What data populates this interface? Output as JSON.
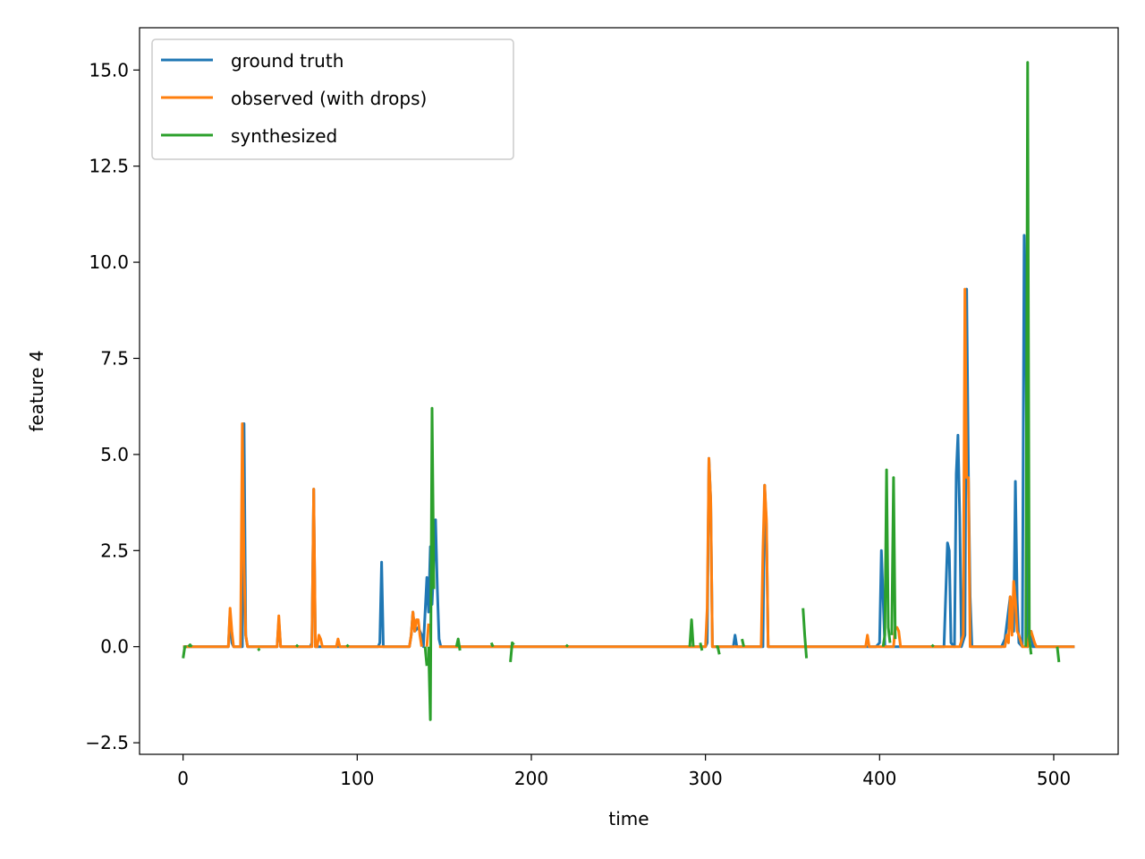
{
  "chart_data": {
    "type": "line",
    "xlabel": "time",
    "ylabel": "feature 4",
    "xlim": [
      -25,
      537
    ],
    "ylim": [
      -2.8,
      16.1
    ],
    "xticks": [
      0,
      100,
      200,
      300,
      400,
      500
    ],
    "yticks": [
      -2.5,
      0.0,
      2.5,
      5.0,
      7.5,
      10.0,
      12.5,
      15.0
    ],
    "xtick_labels": [
      "0",
      "100",
      "200",
      "300",
      "400",
      "500"
    ],
    "ytick_labels": [
      "−2.5",
      "0.0",
      "2.5",
      "5.0",
      "7.5",
      "10.0",
      "12.5",
      "15.0"
    ],
    "legend": {
      "placement": "top-left"
    },
    "grid": false,
    "series": [
      {
        "name": "ground truth",
        "color": "#1f77b4",
        "segments": [
          [
            [
              0,
              0
            ],
            [
              26,
              0
            ],
            [
              27,
              0.9
            ],
            [
              28,
              0.1
            ],
            [
              29,
              0
            ],
            [
              34,
              0
            ],
            [
              35,
              5.8
            ],
            [
              36,
              0.3
            ],
            [
              37,
              0
            ],
            [
              54,
              0
            ],
            [
              55,
              0.7
            ],
            [
              56,
              0
            ],
            [
              73,
              0
            ],
            [
              74,
              0.1
            ],
            [
              75,
              4.1
            ],
            [
              76,
              0
            ],
            [
              112,
              0
            ],
            [
              113,
              0.1
            ],
            [
              114,
              2.2
            ],
            [
              115,
              0
            ],
            [
              130,
              0
            ],
            [
              131,
              0.3
            ],
            [
              132,
              0.9
            ],
            [
              133,
              0.4
            ],
            [
              135,
              0.5
            ],
            [
              137,
              0.3
            ],
            [
              138,
              0
            ],
            [
              140,
              1.8
            ],
            [
              141,
              0.9
            ],
            [
              142,
              2.6
            ],
            [
              143,
              1.1
            ],
            [
              144,
              2.2
            ],
            [
              145,
              3.3
            ],
            [
              146,
              1.5
            ],
            [
              147,
              0.2
            ],
            [
              148,
              0
            ],
            [
              280,
              0
            ],
            [
              300,
              0
            ],
            [
              301,
              0.1
            ],
            [
              302,
              4.9
            ],
            [
              303,
              3.8
            ],
            [
              304,
              0
            ],
            [
              316,
              0
            ],
            [
              317,
              0.3
            ],
            [
              318,
              0
            ],
            [
              333,
              0
            ],
            [
              334,
              4.2
            ],
            [
              335,
              3.1
            ],
            [
              336,
              0
            ],
            [
              398,
              0
            ],
            [
              400,
              0.1
            ],
            [
              401,
              2.5
            ],
            [
              402,
              1.3
            ],
            [
              403,
              0
            ],
            [
              437,
              0
            ],
            [
              439,
              2.7
            ],
            [
              440,
              2.5
            ],
            [
              441,
              0.1
            ],
            [
              443,
              0
            ],
            [
              444,
              4.5
            ],
            [
              445,
              5.5
            ],
            [
              446,
              3.4
            ],
            [
              447,
              0
            ],
            [
              449,
              0.3
            ],
            [
              450,
              9.3
            ],
            [
              451,
              4.5
            ],
            [
              452,
              1.3
            ],
            [
              453,
              0
            ],
            [
              470,
              0
            ],
            [
              472,
              0.2
            ],
            [
              475,
              1.3
            ],
            [
              477,
              0.4
            ],
            [
              478,
              4.3
            ],
            [
              479,
              1.2
            ],
            [
              480,
              0.1
            ],
            [
              482,
              0
            ],
            [
              483,
              10.7
            ],
            [
              484,
              9.0
            ],
            [
              485,
              0
            ],
            [
              487,
              0.4
            ],
            [
              488,
              0
            ],
            [
              512,
              0
            ]
          ]
        ]
      },
      {
        "name": "observed (with drops)",
        "color": "#ff7f0e",
        "segments": [
          [
            [
              0,
              0
            ],
            [
              26,
              0
            ],
            [
              27,
              1.0
            ],
            [
              28,
              0.4
            ],
            [
              29,
              0
            ],
            [
              33,
              0
            ],
            [
              34,
              5.8
            ],
            [
              35,
              2.1
            ],
            [
              36,
              0.3
            ],
            [
              37,
              0
            ],
            [
              54,
              0
            ],
            [
              55,
              0.8
            ],
            [
              56,
              0
            ],
            [
              74,
              0
            ],
            [
              75,
              4.1
            ],
            [
              76,
              0
            ],
            [
              77,
              0
            ],
            [
              78,
              0.3
            ],
            [
              79,
              0.2
            ],
            [
              80,
              0
            ],
            [
              88,
              0
            ],
            [
              89,
              0.2
            ],
            [
              90,
              0
            ],
            [
              130,
              0
            ],
            [
              131,
              0.3
            ],
            [
              132,
              0.9
            ],
            [
              133,
              0.4
            ],
            [
              134,
              0.7
            ],
            [
              135,
              0.7
            ],
            [
              136,
              0.3
            ],
            [
              137,
              0
            ]
          ],
          [
            [
              140,
              0
            ],
            [
              141,
              0.6
            ]
          ],
          [
            [
              147,
              0
            ],
            [
              280,
              0
            ],
            [
              300,
              0
            ],
            [
              301,
              1.0
            ],
            [
              302,
              4.9
            ],
            [
              303,
              3.8
            ],
            [
              304,
              0
            ],
            [
              332,
              0
            ],
            [
              333,
              2.5
            ],
            [
              334,
              4.2
            ],
            [
              335,
              3.3
            ],
            [
              336,
              0
            ],
            [
              392,
              0
            ],
            [
              393,
              0.3
            ],
            [
              394,
              0
            ],
            [
              408,
              0
            ],
            [
              409,
              0.5
            ],
            [
              410,
              0.5
            ],
            [
              411,
              0.4
            ],
            [
              412,
              0
            ],
            [
              446,
              0
            ],
            [
              448,
              0.3
            ],
            [
              449,
              9.3
            ],
            [
              450,
              4.4
            ],
            [
              451,
              4.4
            ],
            [
              452,
              0
            ],
            [
              472,
              0
            ],
            [
              473,
              0.3
            ],
            [
              474,
              0.1
            ],
            [
              475,
              1.3
            ],
            [
              476,
              0.3
            ],
            [
              477,
              1.7
            ],
            [
              478,
              1.2
            ],
            [
              479,
              0.4
            ],
            [
              480,
              0.3
            ],
            [
              482,
              0
            ],
            [
              485,
              0
            ],
            [
              486,
              0.3
            ],
            [
              487,
              0.4
            ],
            [
              489,
              0.1
            ],
            [
              490,
              0
            ],
            [
              512,
              0
            ]
          ]
        ]
      },
      {
        "name": "synthesized",
        "color": "#2ca02c",
        "segments": [
          [
            [
              0,
              -0.3
            ],
            [
              1,
              0
            ],
            [
              2,
              0
            ]
          ],
          [
            [
              3,
              0
            ],
            [
              4,
              0.05
            ],
            [
              5,
              0
            ]
          ],
          [
            [
              43,
              -0.05
            ],
            [
              44,
              -0.1
            ]
          ],
          [
            [
              65,
              0
            ],
            [
              66,
              0.05
            ]
          ],
          [
            [
              94,
              0
            ],
            [
              95,
              0.05
            ]
          ],
          [
            [
              139,
              0
            ],
            [
              140,
              -0.5
            ]
          ],
          [
            [
              141,
              0
            ],
            [
              142,
              -1.9
            ],
            [
              143,
              6.2
            ],
            [
              144,
              1.5
            ]
          ],
          [
            [
              157,
              0
            ],
            [
              158,
              0.2
            ],
            [
              159,
              -0.1
            ]
          ],
          [
            [
              177,
              0.1
            ],
            [
              178,
              0
            ]
          ],
          [
            [
              188,
              -0.4
            ],
            [
              189,
              0.1
            ],
            [
              190,
              0.05
            ]
          ],
          [
            [
              220,
              0
            ],
            [
              221,
              0.05
            ]
          ],
          [
            [
              291,
              0
            ],
            [
              292,
              0.7
            ],
            [
              293,
              0
            ]
          ],
          [
            [
              297,
              0.1
            ],
            [
              298,
              -0.1
            ]
          ],
          [
            [
              306,
              0
            ],
            [
              307,
              0
            ],
            [
              308,
              -0.2
            ]
          ],
          [
            [
              321,
              0.2
            ],
            [
              322,
              0
            ]
          ],
          [
            [
              356,
              1.0
            ],
            [
              357,
              0.3
            ],
            [
              358,
              -0.3
            ]
          ],
          [
            [
              402,
              0
            ],
            [
              403,
              0.3
            ],
            [
              404,
              4.6
            ],
            [
              405,
              0.5
            ],
            [
              406,
              0.1
            ]
          ],
          [
            [
              407,
              0.3
            ],
            [
              408,
              4.4
            ],
            [
              409,
              0.2
            ]
          ],
          [
            [
              430,
              0
            ],
            [
              431,
              0.05
            ]
          ],
          [
            [
              484,
              0
            ],
            [
              485,
              15.2
            ],
            [
              486,
              0.2
            ],
            [
              487,
              -0.2
            ]
          ],
          [
            [
              502,
              0
            ],
            [
              503,
              -0.4
            ]
          ]
        ]
      }
    ]
  }
}
